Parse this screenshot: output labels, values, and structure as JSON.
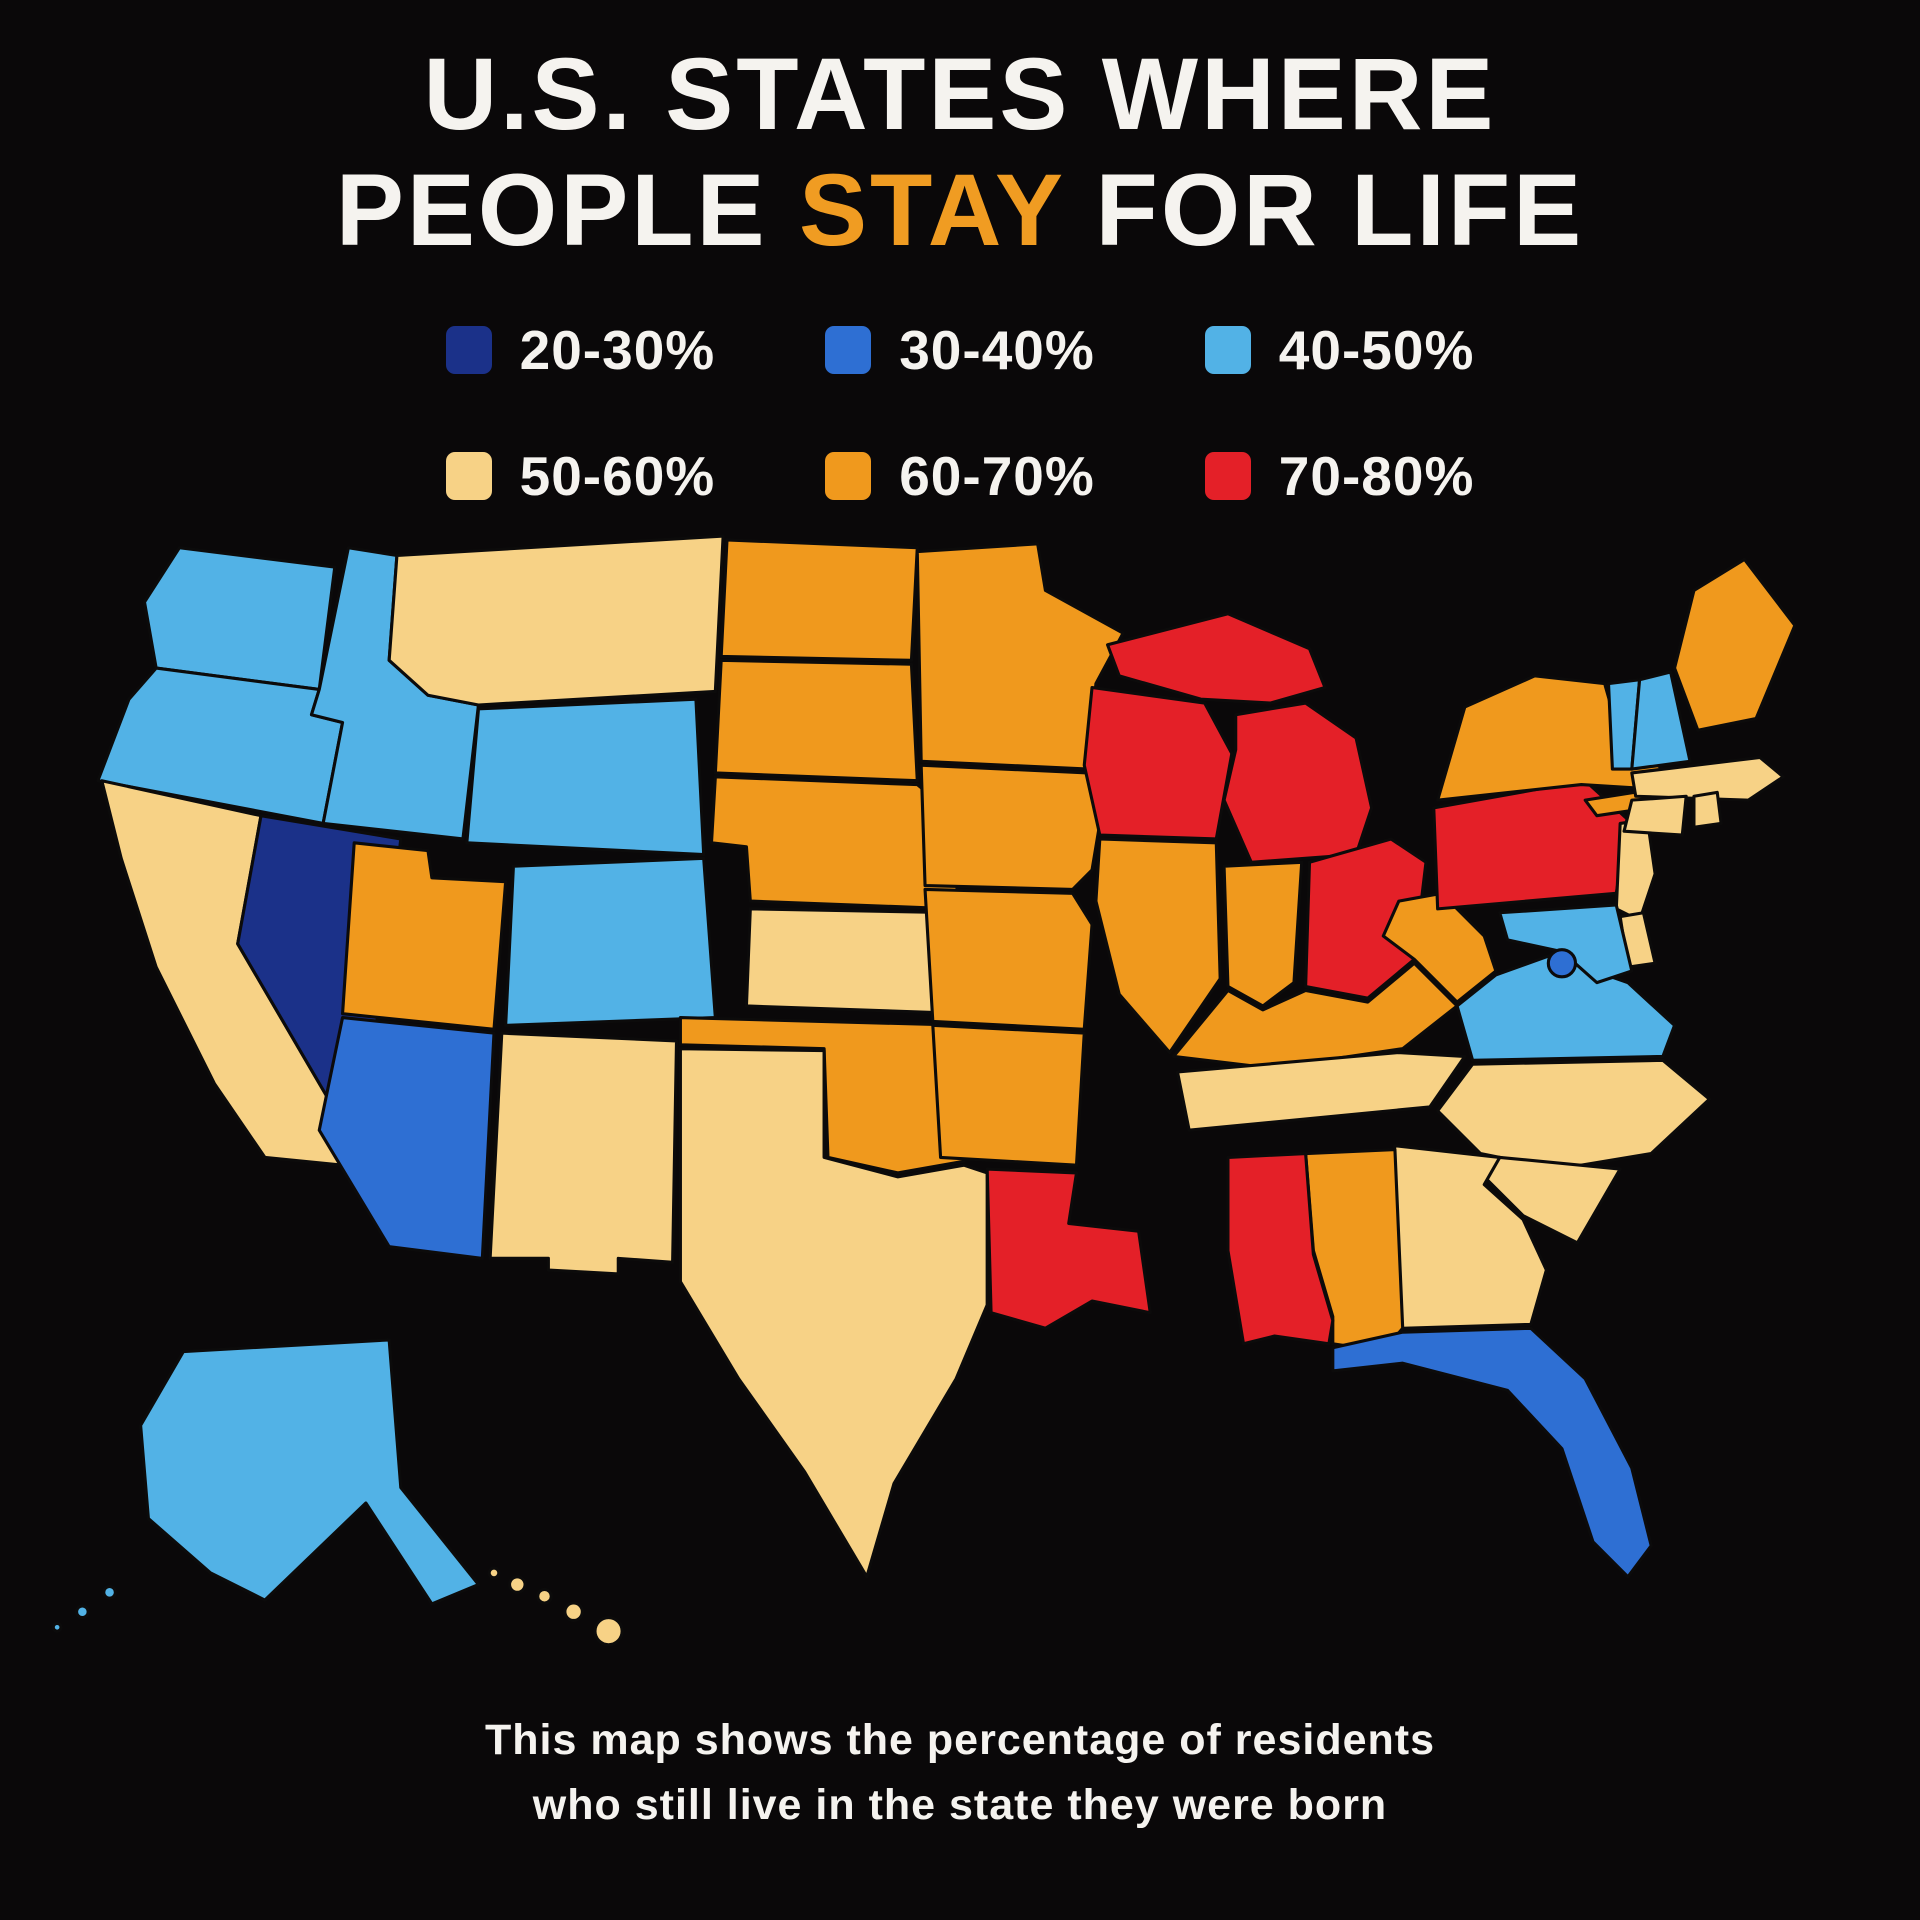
{
  "title": {
    "line1": "U.S. STATES WHERE",
    "line2_before": "PEOPLE ",
    "line2_highlight": "STAY",
    "line2_after": " FOR LIFE"
  },
  "palette": {
    "background": "#0a0809",
    "text": "#f5f3ef",
    "accent": "#f09c22",
    "map_outline": "#0c0b0b"
  },
  "legend": {
    "items": [
      "20-30%",
      "30-40%",
      "40-50%",
      "50-60%",
      "60-70%",
      "70-80%"
    ]
  },
  "map": {
    "bins": {
      "20-30%": "#1b3189",
      "30-40%": "#2e6fd3",
      "40-50%": "#52b2e6",
      "50-60%": "#f7d286",
      "60-70%": "#f0991d",
      "70-80%": "#e42028"
    },
    "states": [
      {
        "id": "WA",
        "name": "Washington",
        "range": "40-50%"
      },
      {
        "id": "OR",
        "name": "Oregon",
        "range": "40-50%"
      },
      {
        "id": "CA",
        "name": "California",
        "range": "50-60%"
      },
      {
        "id": "NV",
        "name": "Nevada",
        "range": "20-30%"
      },
      {
        "id": "ID",
        "name": "Idaho",
        "range": "40-50%"
      },
      {
        "id": "MT",
        "name": "Montana",
        "range": "50-60%"
      },
      {
        "id": "WY",
        "name": "Wyoming",
        "range": "40-50%"
      },
      {
        "id": "UT",
        "name": "Utah",
        "range": "60-70%"
      },
      {
        "id": "CO",
        "name": "Colorado",
        "range": "40-50%"
      },
      {
        "id": "AZ",
        "name": "Arizona",
        "range": "30-40%"
      },
      {
        "id": "NM",
        "name": "New Mexico",
        "range": "50-60%"
      },
      {
        "id": "ND",
        "name": "North Dakota",
        "range": "60-70%"
      },
      {
        "id": "SD",
        "name": "South Dakota",
        "range": "60-70%"
      },
      {
        "id": "NE",
        "name": "Nebraska",
        "range": "60-70%"
      },
      {
        "id": "KS",
        "name": "Kansas",
        "range": "50-60%"
      },
      {
        "id": "OK",
        "name": "Oklahoma",
        "range": "60-70%"
      },
      {
        "id": "TX",
        "name": "Texas",
        "range": "50-60%"
      },
      {
        "id": "MN",
        "name": "Minnesota",
        "range": "60-70%"
      },
      {
        "id": "IA",
        "name": "Iowa",
        "range": "60-70%"
      },
      {
        "id": "MO",
        "name": "Missouri",
        "range": "60-70%"
      },
      {
        "id": "AR",
        "name": "Arkansas",
        "range": "60-70%"
      },
      {
        "id": "LA",
        "name": "Louisiana",
        "range": "70-80%"
      },
      {
        "id": "WI",
        "name": "Wisconsin",
        "range": "70-80%"
      },
      {
        "id": "IL",
        "name": "Illinois",
        "range": "60-70%"
      },
      {
        "id": "MI",
        "name": "Michigan",
        "range": "70-80%"
      },
      {
        "id": "IN",
        "name": "Indiana",
        "range": "60-70%"
      },
      {
        "id": "OH",
        "name": "Ohio",
        "range": "70-80%"
      },
      {
        "id": "KY",
        "name": "Kentucky",
        "range": "60-70%"
      },
      {
        "id": "TN",
        "name": "Tennessee",
        "range": "50-60%"
      },
      {
        "id": "WV",
        "name": "West Virginia",
        "range": "60-70%"
      },
      {
        "id": "VA",
        "name": "Virginia",
        "range": "40-50%"
      },
      {
        "id": "NC",
        "name": "North Carolina",
        "range": "50-60%"
      },
      {
        "id": "SC",
        "name": "South Carolina",
        "range": "50-60%"
      },
      {
        "id": "GA",
        "name": "Georgia",
        "range": "50-60%"
      },
      {
        "id": "AL",
        "name": "Alabama",
        "range": "60-70%"
      },
      {
        "id": "MS",
        "name": "Mississippi",
        "range": "70-80%"
      },
      {
        "id": "FL",
        "name": "Florida",
        "range": "30-40%"
      },
      {
        "id": "PA",
        "name": "Pennsylvania",
        "range": "70-80%"
      },
      {
        "id": "NY",
        "name": "New York",
        "range": "60-70%"
      },
      {
        "id": "NJ",
        "name": "New Jersey",
        "range": "50-60%"
      },
      {
        "id": "DE",
        "name": "Delaware",
        "range": "50-60%"
      },
      {
        "id": "MD",
        "name": "Maryland",
        "range": "40-50%"
      },
      {
        "id": "DC",
        "name": "Washington DC",
        "range": "30-40%"
      },
      {
        "id": "VT",
        "name": "Vermont",
        "range": "40-50%"
      },
      {
        "id": "NH",
        "name": "New Hampshire",
        "range": "40-50%"
      },
      {
        "id": "ME",
        "name": "Maine",
        "range": "60-70%"
      },
      {
        "id": "MA",
        "name": "Massachusetts",
        "range": "50-60%"
      },
      {
        "id": "CT",
        "name": "Connecticut",
        "range": "50-60%"
      },
      {
        "id": "RI",
        "name": "Rhode Island",
        "range": "50-60%"
      },
      {
        "id": "AK",
        "name": "Alaska",
        "range": "40-50%"
      },
      {
        "id": "HI",
        "name": "Hawaii",
        "range": "50-60%"
      }
    ]
  },
  "footer": {
    "line1": "This map shows the percentage of residents",
    "line2": "who still live in the state they were born"
  }
}
